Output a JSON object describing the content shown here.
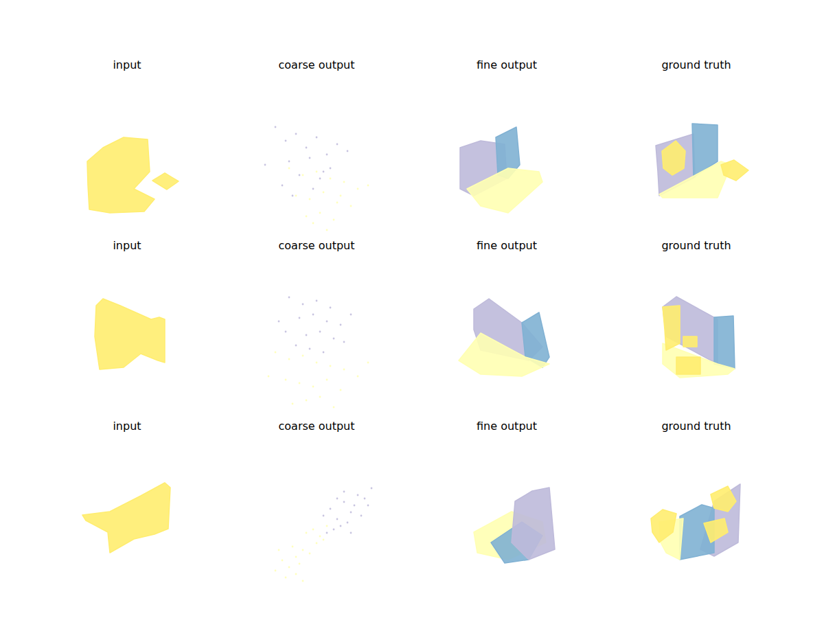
{
  "chart_data": [
    {
      "type": "scatter",
      "title": "input",
      "xlim": [
        0,
        200
      ],
      "ylim": [
        0,
        185
      ],
      "tick_labels": false,
      "series": [
        {
          "type": "area",
          "color": "#ffed6f",
          "x": [
            42,
            65,
            95,
            130,
            133,
            110,
            140,
            125,
            75,
            45,
            43
          ],
          "values": [
            110,
            130,
            145,
            142,
            95,
            70,
            55,
            37,
            35,
            40,
            75
          ]
        },
        {
          "type": "area",
          "color": "#ffed6f",
          "x": [
            137,
            155,
            175,
            158
          ],
          "values": [
            82,
            93,
            81,
            69
          ]
        }
      ]
    },
    {
      "type": "scatter",
      "title": "coarse output",
      "xlim": [
        0,
        200
      ],
      "ylim": [
        0,
        185
      ],
      "tick_labels": false,
      "series": [
        {
          "type": "scatter",
          "color": "#bebada",
          "x": [
            40,
            55,
            70,
            85,
            100,
            115,
            130,
            60,
            90,
            120,
            75,
            105,
            25,
            145,
            50,
            95,
            65,
            110
          ],
          "values": [
            160,
            140,
            150,
            130,
            145,
            120,
            135,
            110,
            115,
            100,
            90,
            85,
            105,
            125,
            75,
            70,
            60,
            95
          ]
        },
        {
          "type": "scatter",
          "color": "#ffffb3",
          "x": [
            60,
            80,
            100,
            120,
            140,
            160,
            70,
            90,
            110,
            130,
            150,
            85,
            105,
            125,
            175,
            95,
            115,
            135
          ],
          "values": [
            100,
            90,
            95,
            85,
            80,
            70,
            60,
            55,
            65,
            50,
            45,
            30,
            35,
            25,
            75,
            20,
            10,
            60
          ]
        }
      ]
    },
    {
      "type": "scatter",
      "title": "fine output",
      "xlim": [
        0,
        200
      ],
      "ylim": [
        0,
        185
      ],
      "tick_labels": false,
      "series": [
        {
          "type": "area",
          "color": "#bebada",
          "x": [
            32,
            62,
            97,
            100,
            52,
            32
          ],
          "values": [
            130,
            140,
            135,
            85,
            60,
            70
          ]
        },
        {
          "type": "area",
          "color": "#80b1d3",
          "x": [
            84,
            114,
            119,
            102,
            87
          ],
          "values": [
            145,
            160,
            105,
            85,
            90
          ]
        },
        {
          "type": "area",
          "color": "#ffffb3",
          "x": [
            42,
            102,
            147,
            152,
            102,
            62
          ],
          "values": [
            70,
            100,
            95,
            80,
            35,
            45
          ]
        }
      ]
    },
    {
      "type": "scatter",
      "title": "ground truth",
      "xlim": [
        0,
        200
      ],
      "ylim": [
        0,
        185
      ],
      "tick_labels": false,
      "series": [
        {
          "type": "area",
          "color": "#bebada",
          "x": [
            41,
            96,
            98,
            46,
            44
          ],
          "values": [
            133,
            150,
            87,
            60,
            95
          ]
        },
        {
          "type": "area",
          "color": "#80b1d3",
          "x": [
            94,
            131,
            131,
            96
          ],
          "values": [
            165,
            163,
            110,
            87
          ]
        },
        {
          "type": "area",
          "color": "#ffffb3",
          "x": [
            46,
            136,
            151,
            131,
            51
          ],
          "values": [
            62,
            110,
            105,
            57,
            57
          ]
        },
        {
          "type": "area",
          "color": "#ffed6f",
          "x": [
            50,
            70,
            84,
            82,
            65,
            52
          ],
          "values": [
            125,
            140,
            125,
            100,
            90,
            100
          ]
        },
        {
          "type": "area",
          "color": "#ffed6f",
          "x": [
            136,
            155,
            176,
            158,
            140
          ],
          "values": [
            105,
            112,
            97,
            82,
            90
          ]
        }
      ]
    },
    {
      "type": "scatter",
      "title": "input",
      "xlim": [
        0,
        200
      ],
      "ylim": [
        0,
        185
      ],
      "tick_labels": false,
      "series": [
        {
          "type": "area",
          "color": "#ffed6f",
          "x": [
            55,
            65,
            90,
            135,
            147,
            155,
            155,
            145,
            120,
            95,
            60,
            53
          ],
          "values": [
            163,
            173,
            163,
            143,
            146,
            143,
            80,
            83,
            93,
            73,
            70,
            118
          ]
        }
      ]
    },
    {
      "type": "scatter",
      "title": "coarse output",
      "xlim": [
        0,
        200
      ],
      "ylim": [
        0,
        185
      ],
      "tick_labels": false,
      "series": [
        {
          "type": "scatter",
          "color": "#bebada",
          "x": [
            60,
            80,
            100,
            120,
            75,
            95,
            115,
            135,
            55,
            85,
            105,
            125,
            90,
            110,
            70,
            140,
            150,
            45
          ],
          "values": [
            175,
            165,
            170,
            160,
            145,
            150,
            140,
            135,
            125,
            120,
            125,
            115,
            100,
            95,
            105,
            110,
            150,
            140
          ]
        },
        {
          "type": "scatter",
          "color": "#ffffb3",
          "x": [
            40,
            60,
            80,
            100,
            120,
            140,
            160,
            55,
            75,
            95,
            115,
            135,
            85,
            105,
            65,
            125,
            30,
            175
          ],
          "values": [
            95,
            85,
            90,
            80,
            75,
            70,
            60,
            55,
            50,
            45,
            55,
            40,
            25,
            30,
            20,
            15,
            60,
            80
          ]
        }
      ]
    },
    {
      "type": "scatter",
      "title": "fine output",
      "xlim": [
        0,
        200
      ],
      "ylim": [
        0,
        185
      ],
      "tick_labels": false,
      "series": [
        {
          "type": "area",
          "color": "#bebada",
          "x": [
            52,
            74,
            122,
            152,
            132,
            62,
            52
          ],
          "values": [
            158,
            173,
            138,
            103,
            83,
            98,
            128
          ]
        },
        {
          "type": "area",
          "color": "#80b1d3",
          "x": [
            122,
            147,
            162,
            152,
            127
          ],
          "values": [
            138,
            153,
            88,
            73,
            88
          ]
        },
        {
          "type": "area",
          "color": "#ffffb3",
          "x": [
            30,
            62,
            127,
            162,
            122,
            62
          ],
          "values": [
            83,
            123,
            88,
            78,
            60,
            63
          ]
        }
      ]
    },
    {
      "type": "scatter",
      "title": "ground truth",
      "xlim": [
        0,
        200
      ],
      "ylim": [
        0,
        185
      ],
      "tick_labels": false,
      "series": [
        {
          "type": "area",
          "color": "#bebada",
          "x": [
            51,
            71,
            131,
            131,
            56
          ],
          "values": [
            161,
            176,
            143,
            78,
            118
          ]
        },
        {
          "type": "area",
          "color": "#80b1d3",
          "x": [
            126,
            154,
            156,
            126
          ],
          "values": [
            146,
            148,
            71,
            78
          ]
        },
        {
          "type": "area",
          "color": "#ffffb3",
          "x": [
            51,
            131,
            156,
            146,
            76,
            51
          ],
          "values": [
            108,
            78,
            71,
            63,
            58,
            78
          ]
        },
        {
          "type": "area",
          "color": "#ffed6f",
          "x": [
            51,
            76,
            76,
            56,
            54
          ],
          "values": [
            161,
            163,
            108,
            98,
            128
          ]
        },
        {
          "type": "area",
          "color": "#ffed6f",
          "x": [
            71,
            106,
            106,
            71
          ],
          "values": [
            88,
            88,
            63,
            63
          ]
        },
        {
          "type": "area",
          "color": "#ffed6f",
          "x": [
            81,
            101,
            101,
            81
          ],
          "values": [
            118,
            118,
            103,
            103
          ]
        }
      ]
    },
    {
      "type": "scatter",
      "title": "input",
      "xlim": [
        0,
        200
      ],
      "ylim": [
        0,
        185
      ],
      "tick_labels": false,
      "series": [
        {
          "type": "area",
          "color": "#ffed6f",
          "x": [
            35,
            75,
            120,
            155,
            163,
            160,
            140,
            110,
            75,
            72,
            40
          ],
          "values": [
            121,
            126,
            149,
            168,
            161,
            101,
            93,
            86,
            66,
            96,
            113
          ]
        }
      ]
    },
    {
      "type": "scatter",
      "title": "coarse output",
      "xlim": [
        0,
        200
      ],
      "ylim": [
        0,
        185
      ],
      "tick_labels": false,
      "series": [
        {
          "type": "scatter",
          "color": "#bebada",
          "x": [
            110,
            120,
            130,
            140,
            150,
            160,
            170,
            180,
            125,
            135,
            145,
            155,
            165,
            115,
            140,
            150,
            175,
            130
          ],
          "values": [
            120,
            130,
            115,
            140,
            125,
            150,
            145,
            160,
            100,
            105,
            110,
            135,
            120,
            95,
            155,
            95,
            135,
            145
          ]
        },
        {
          "type": "scatter",
          "color": "#ffffb3",
          "x": [
            40,
            50,
            60,
            70,
            80,
            90,
            100,
            110,
            55,
            65,
            75,
            85,
            95,
            105,
            45,
            80,
            70,
            115
          ],
          "values": [
            40,
            55,
            45,
            60,
            70,
            65,
            80,
            85,
            30,
            75,
            50,
            95,
            100,
            90,
            70,
            25,
            35,
            105
          ]
        }
      ]
    },
    {
      "type": "scatter",
      "title": "fine output",
      "xlim": [
        0,
        200
      ],
      "ylim": [
        0,
        185
      ],
      "tick_labels": false,
      "series": [
        {
          "type": "area",
          "color": "#ffffb3",
          "x": [
            52,
            107,
            152,
            157,
            102,
            57
          ],
          "values": [
            96,
            126,
            111,
            81,
            56,
            66
          ]
        },
        {
          "type": "area",
          "color": "#80b1d3",
          "x": [
            77,
            122,
            152,
            132,
            97
          ],
          "values": [
            81,
            111,
            91,
            56,
            51
          ]
        },
        {
          "type": "area",
          "color": "#bebada",
          "x": [
            112,
            137,
            162,
            170,
            132,
            107
          ],
          "values": [
            141,
            156,
            161,
            71,
            56,
            81
          ]
        }
      ]
    },
    {
      "type": "scatter",
      "title": "ground truth",
      "xlim": [
        0,
        200
      ],
      "ylim": [
        0,
        185
      ],
      "tick_labels": false,
      "series": [
        {
          "type": "area",
          "color": "#bebada",
          "x": [
            126,
            164,
            161,
            126,
            106
          ],
          "values": [
            141,
            166,
            81,
            61,
            71
          ]
        },
        {
          "type": "area",
          "color": "#80b1d3",
          "x": [
            76,
            108,
            126,
            126,
            76
          ],
          "values": [
            119,
            136,
            131,
            66,
            56
          ]
        },
        {
          "type": "area",
          "color": "#ffffb3",
          "x": [
            46,
            81,
            76,
            56,
            48
          ],
          "values": [
            111,
            116,
            56,
            66,
            81
          ]
        },
        {
          "type": "area",
          "color": "#ffed6f",
          "x": [
            34,
            51,
            71,
            66,
            46,
            36
          ],
          "values": [
            116,
            129,
            123,
            96,
            81,
            96
          ]
        },
        {
          "type": "area",
          "color": "#ffed6f",
          "x": [
            121,
            146,
            158,
            146,
            126
          ],
          "values": [
            151,
            163,
            141,
            126,
            131
          ]
        },
        {
          "type": "area",
          "color": "#ffed6f",
          "x": [
            111,
            141,
            146,
            121
          ],
          "values": [
            109,
            116,
            96,
            81
          ]
        }
      ]
    }
  ]
}
